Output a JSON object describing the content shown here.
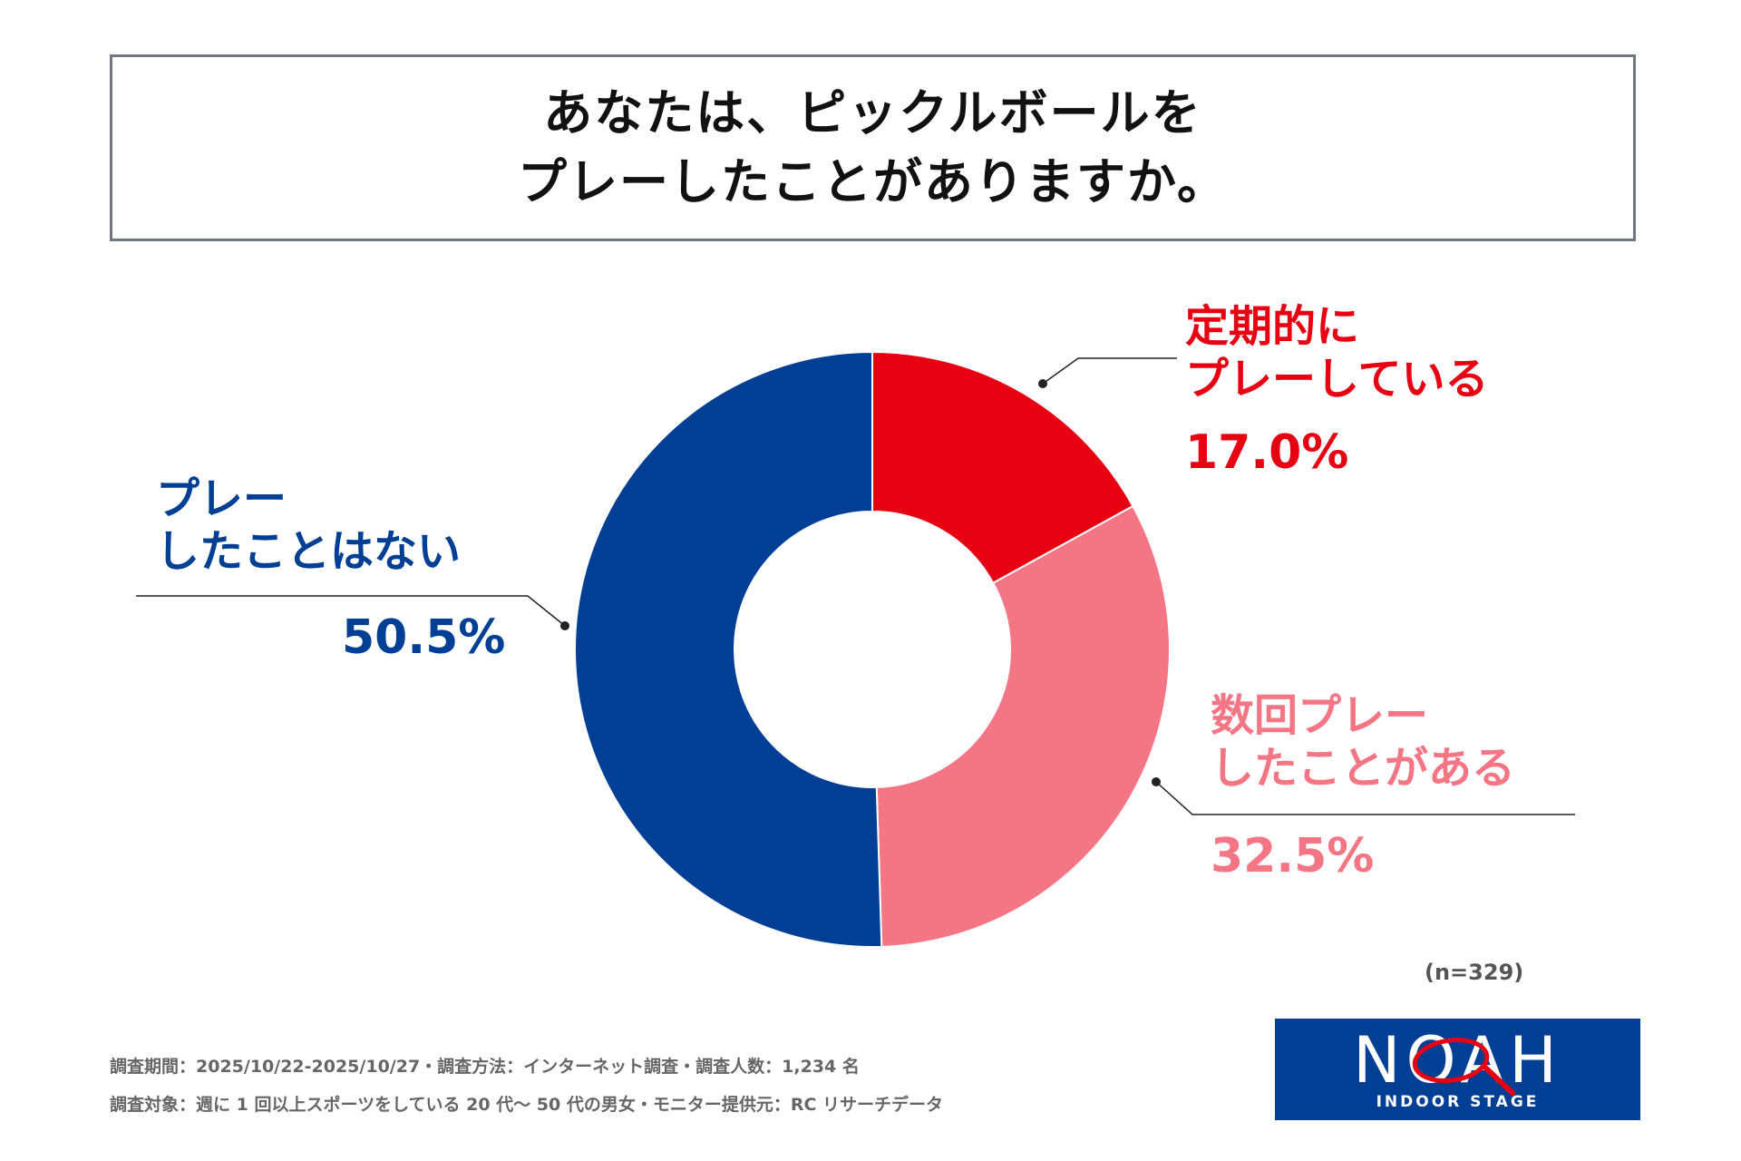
{
  "title": {
    "line1": "あなたは、ピックルボールを",
    "line2": "プレーしたことがありますか。"
  },
  "chart_data": {
    "type": "pie",
    "variant": "donut",
    "title": "あなたは、ピックルボールをプレーしたことがありますか。",
    "unit": "%",
    "slices": [
      {
        "label": "定期的にプレーしている",
        "label_lines": [
          "定期的に",
          "プレーしている"
        ],
        "value": 17.0,
        "display": "17.0%",
        "color": "#e60012"
      },
      {
        "label": "数回プレーしたことがある",
        "label_lines": [
          "数回プレー",
          "したことがある"
        ],
        "value": 32.5,
        "display": "32.5%",
        "color": "#f47584"
      },
      {
        "label": "プレーしたことはない",
        "label_lines": [
          "プレー",
          "したことはない"
        ],
        "value": 50.5,
        "display": "50.5%",
        "color": "#003f93"
      }
    ],
    "sample_size": "(n=329)"
  },
  "footnotes": {
    "line1": "調査期間：2025/10/22-2025/10/27・調査方法：インターネット調査・調査人数：1,234 名",
    "line2": "調査対象：週に 1 回以上スポーツをしている 20 代〜 50 代の男女・モニター提供元：RC リサーチデータ"
  },
  "logo": {
    "wordmark": "NOAH",
    "subtitle": "INDOOR STAGE",
    "color": "#003f93"
  }
}
